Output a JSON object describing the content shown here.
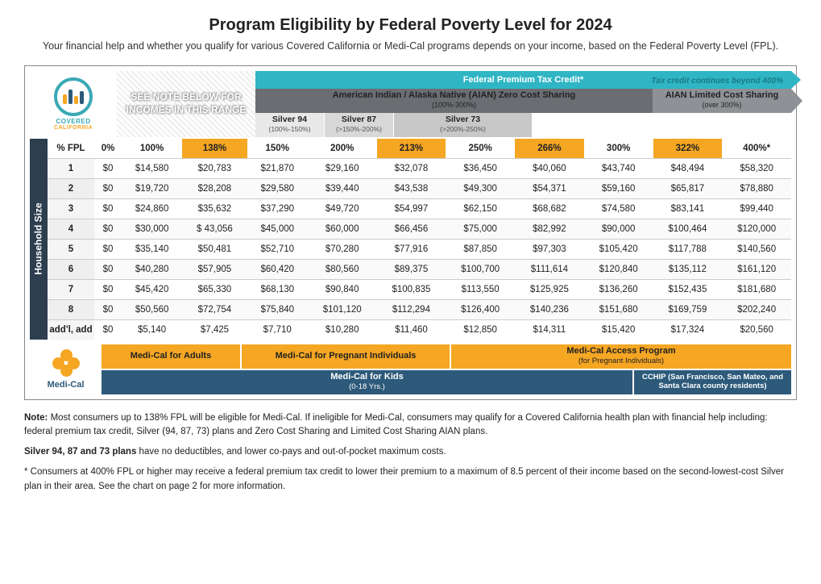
{
  "title": "Program Eligibility by Federal Poverty Level for 2024",
  "subtitle": "Your financial help and whether you qualify for various Covered California or Medi-Cal programs depends on your income, based on the Federal Poverty Level (FPL).",
  "logo": {
    "brand1": "COVERED",
    "brand2": "CALIFORNIA"
  },
  "note_box": "SEE NOTE BELOW FOR INCOMES IN THIS RANGE",
  "bands": {
    "fptc": "Federal Premium Tax Credit*",
    "tax_note": "Tax credit continues beyond 400%",
    "aian_zero": "American Indian / Alaska Native (AIAN) Zero Cost Sharing",
    "aian_zero_sub": "(100%-300%)",
    "aian_limited": "AIAN Limited Cost Sharing",
    "aian_limited_sub": "(over 300%)",
    "s94": "Silver 94",
    "s94_sub": "(100%-150%)",
    "s87": "Silver 87",
    "s87_sub": "(>150%-200%)",
    "s73": "Silver 73",
    "s73_sub": "(>200%-250%)"
  },
  "side_label": "Household Size",
  "headers": [
    "% FPL",
    "0%",
    "100%",
    "138%",
    "150%",
    "200%",
    "213%",
    "250%",
    "266%",
    "300%",
    "322%",
    "400%*"
  ],
  "highlight_cols": [
    3,
    6,
    8,
    10
  ],
  "rows": [
    {
      "label": "1",
      "cells": [
        "$0",
        "$14,580",
        "$20,783",
        "$21,870",
        "$29,160",
        "$32,078",
        "$36,450",
        "$40,060",
        "$43,740",
        "$48,494",
        "$58,320"
      ]
    },
    {
      "label": "2",
      "cells": [
        "$0",
        "$19,720",
        "$28,208",
        "$29,580",
        "$39,440",
        "$43,538",
        "$49,300",
        "$54,371",
        "$59,160",
        "$65,817",
        "$78,880"
      ]
    },
    {
      "label": "3",
      "cells": [
        "$0",
        "$24,860",
        "$35,632",
        "$37,290",
        "$49,720",
        "$54,997",
        "$62,150",
        "$68,682",
        "$74,580",
        "$83,141",
        "$99,440"
      ]
    },
    {
      "label": "4",
      "cells": [
        "$0",
        "$30,000",
        "$ 43,056",
        "$45,000",
        "$60,000",
        "$66,456",
        "$75,000",
        "$82,992",
        "$90,000",
        "$100,464",
        "$120,000"
      ]
    },
    {
      "label": "5",
      "cells": [
        "$0",
        "$35,140",
        "$50,481",
        "$52,710",
        "$70,280",
        "$77,916",
        "$87,850",
        "$97,303",
        "$105,420",
        "$117,788",
        "$140,560"
      ]
    },
    {
      "label": "6",
      "cells": [
        "$0",
        "$40,280",
        "$57,905",
        "$60,420",
        "$80,560",
        "$89,375",
        "$100,700",
        "$111,614",
        "$120,840",
        "$135,112",
        "$161,120"
      ]
    },
    {
      "label": "7",
      "cells": [
        "$0",
        "$45,420",
        "$65,330",
        "$68,130",
        "$90,840",
        "$100,835",
        "$113,550",
        "$125,925",
        "$136,260",
        "$152,435",
        "$181,680"
      ]
    },
    {
      "label": "8",
      "cells": [
        "$0",
        "$50,560",
        "$72,754",
        "$75,840",
        "$101,120",
        "$112,294",
        "$126,400",
        "$140,236",
        "$151,680",
        "$169,759",
        "$202,240"
      ]
    },
    {
      "label": "add'l, add",
      "cells": [
        "$0",
        "$5,140",
        "$7,425",
        "$7,710",
        "$10,280",
        "$11,460",
        "$12,850",
        "$14,311",
        "$15,420",
        "$17,324",
        "$20,560"
      ]
    }
  ],
  "medical_label": "Medi-Cal",
  "programs": {
    "adults": "Medi-Cal for Adults",
    "pregnant": "Medi-Cal for Pregnant Individuals",
    "access": "Medi-Cal Access Program",
    "access_sub": "(for Pregnant Individuals)",
    "kids": "Medi-Cal for Kids",
    "kids_sub": "(0-18 Yrs.)",
    "cchip": "CCHIP (San Francisco, San Mateo, and Santa Clara county residents)"
  },
  "footnotes": {
    "note_label": "Note:",
    "note": " Most consumers up to 138% FPL will be eligible for Medi-Cal. If ineligible for Medi-Cal, consumers may qualify for a Covered California health plan with financial help including: federal premium tax credit, Silver (94, 87, 73) plans and Zero Cost Sharing and Limited Cost Sharing AIAN plans.",
    "silver_label": "Silver 94, 87 and 73 plans",
    "silver": " have no deductibles, and lower co-pays and out-of-pocket maximum costs.",
    "star": "* Consumers at 400% FPL or higher may receive a federal premium tax credit to lower their premium to a maximum of 8.5 percent of their income based on the second-lowest-cost Silver plan in their area. See the chart on page 2 for more information."
  },
  "colors": {
    "teal": "#2fb5c4",
    "gray": "#6a6e72",
    "gray2": "#8e9296",
    "orange": "#f5a623",
    "navy": "#2d5a7a"
  }
}
